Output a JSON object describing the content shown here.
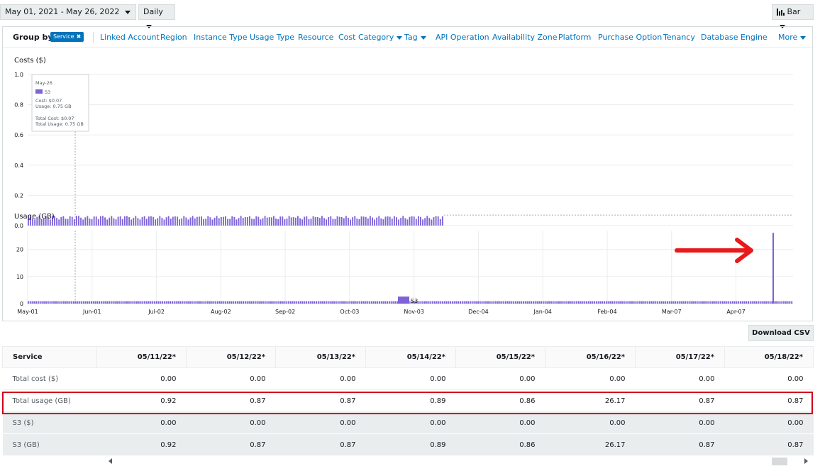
{
  "toolbar": {
    "date_range": "May 01, 2021 - May 26, 2022",
    "granularity": "Daily",
    "chart_style": "Bar",
    "chart_style_icon": "bar-chart-icon"
  },
  "group_by": {
    "label": "Group by:",
    "selected": "Service",
    "options": [
      "Linked Account",
      "Region",
      "Instance Type",
      "Usage Type",
      "Resource",
      "Cost Category",
      "Tag",
      "API Operation",
      "Availability Zone",
      "Platform",
      "Purchase Option",
      "Tenancy",
      "Database Engine",
      "More"
    ]
  },
  "tooltip": {
    "date": "May-26",
    "series": "S3",
    "cost": "Cost: $0.07",
    "usage": "Usage: 0.75 GB",
    "total_cost": "Total Cost: $0.07",
    "total_usage": "Total Usage: 0.75 GB"
  },
  "annotation": {
    "arrow_color": "#e8191a",
    "highlight_color": "#d0021b"
  },
  "colors": {
    "series_bar": "#7d62d8",
    "link": "#0073bb",
    "chip": "#0073bb"
  },
  "chart_data": [
    {
      "type": "bar",
      "title": "Costs ($)",
      "ylim": [
        0,
        1.0
      ],
      "yticks": [
        "0.0",
        "0.2",
        "0.4",
        "0.6",
        "0.8",
        "1.0"
      ],
      "series": [
        {
          "name": "S3",
          "value_range": [
            0.04,
            0.08
          ],
          "days_with_data": 190
        }
      ],
      "grid": true
    },
    {
      "type": "bar",
      "title": "Usage (GB)",
      "ylim": [
        0,
        27
      ],
      "yticks": [
        "0",
        "10",
        "20"
      ],
      "xticks": [
        "May-01",
        "Jun-01",
        "Jul-02",
        "Aug-02",
        "Sep-02",
        "Oct-03",
        "Nov-03",
        "Dec-04",
        "Jan-04",
        "Feb-04",
        "Mar-07",
        "Apr-07"
      ],
      "series": [
        {
          "name": "S3",
          "typical_value": 0.9,
          "spike": {
            "date": "05/16/22",
            "value": 26.17
          }
        }
      ],
      "legend": [
        "S3"
      ],
      "legend_position": "bottom",
      "grid": true
    }
  ],
  "table": {
    "download_label": "Download CSV",
    "columns": [
      "Service",
      "05/11/22*",
      "05/12/22*",
      "05/13/22*",
      "05/14/22*",
      "05/15/22*",
      "05/16/22*",
      "05/17/22*",
      "05/18/22*"
    ],
    "rows": [
      {
        "label": "Total cost ($)",
        "values": [
          "0.00",
          "0.00",
          "0.00",
          "0.00",
          "0.00",
          "0.00",
          "0.00",
          "0.00"
        ]
      },
      {
        "label": "Total usage (GB)",
        "values": [
          "0.92",
          "0.87",
          "0.87",
          "0.89",
          "0.86",
          "26.17",
          "0.87",
          "0.87"
        ]
      },
      {
        "label": "S3 ($)",
        "values": [
          "0.00",
          "0.00",
          "0.00",
          "0.00",
          "0.00",
          "0.00",
          "0.00",
          "0.00"
        ]
      },
      {
        "label": "S3 (GB)",
        "values": [
          "0.92",
          "0.87",
          "0.87",
          "0.89",
          "0.86",
          "26.17",
          "0.87",
          "0.87"
        ]
      }
    ]
  }
}
